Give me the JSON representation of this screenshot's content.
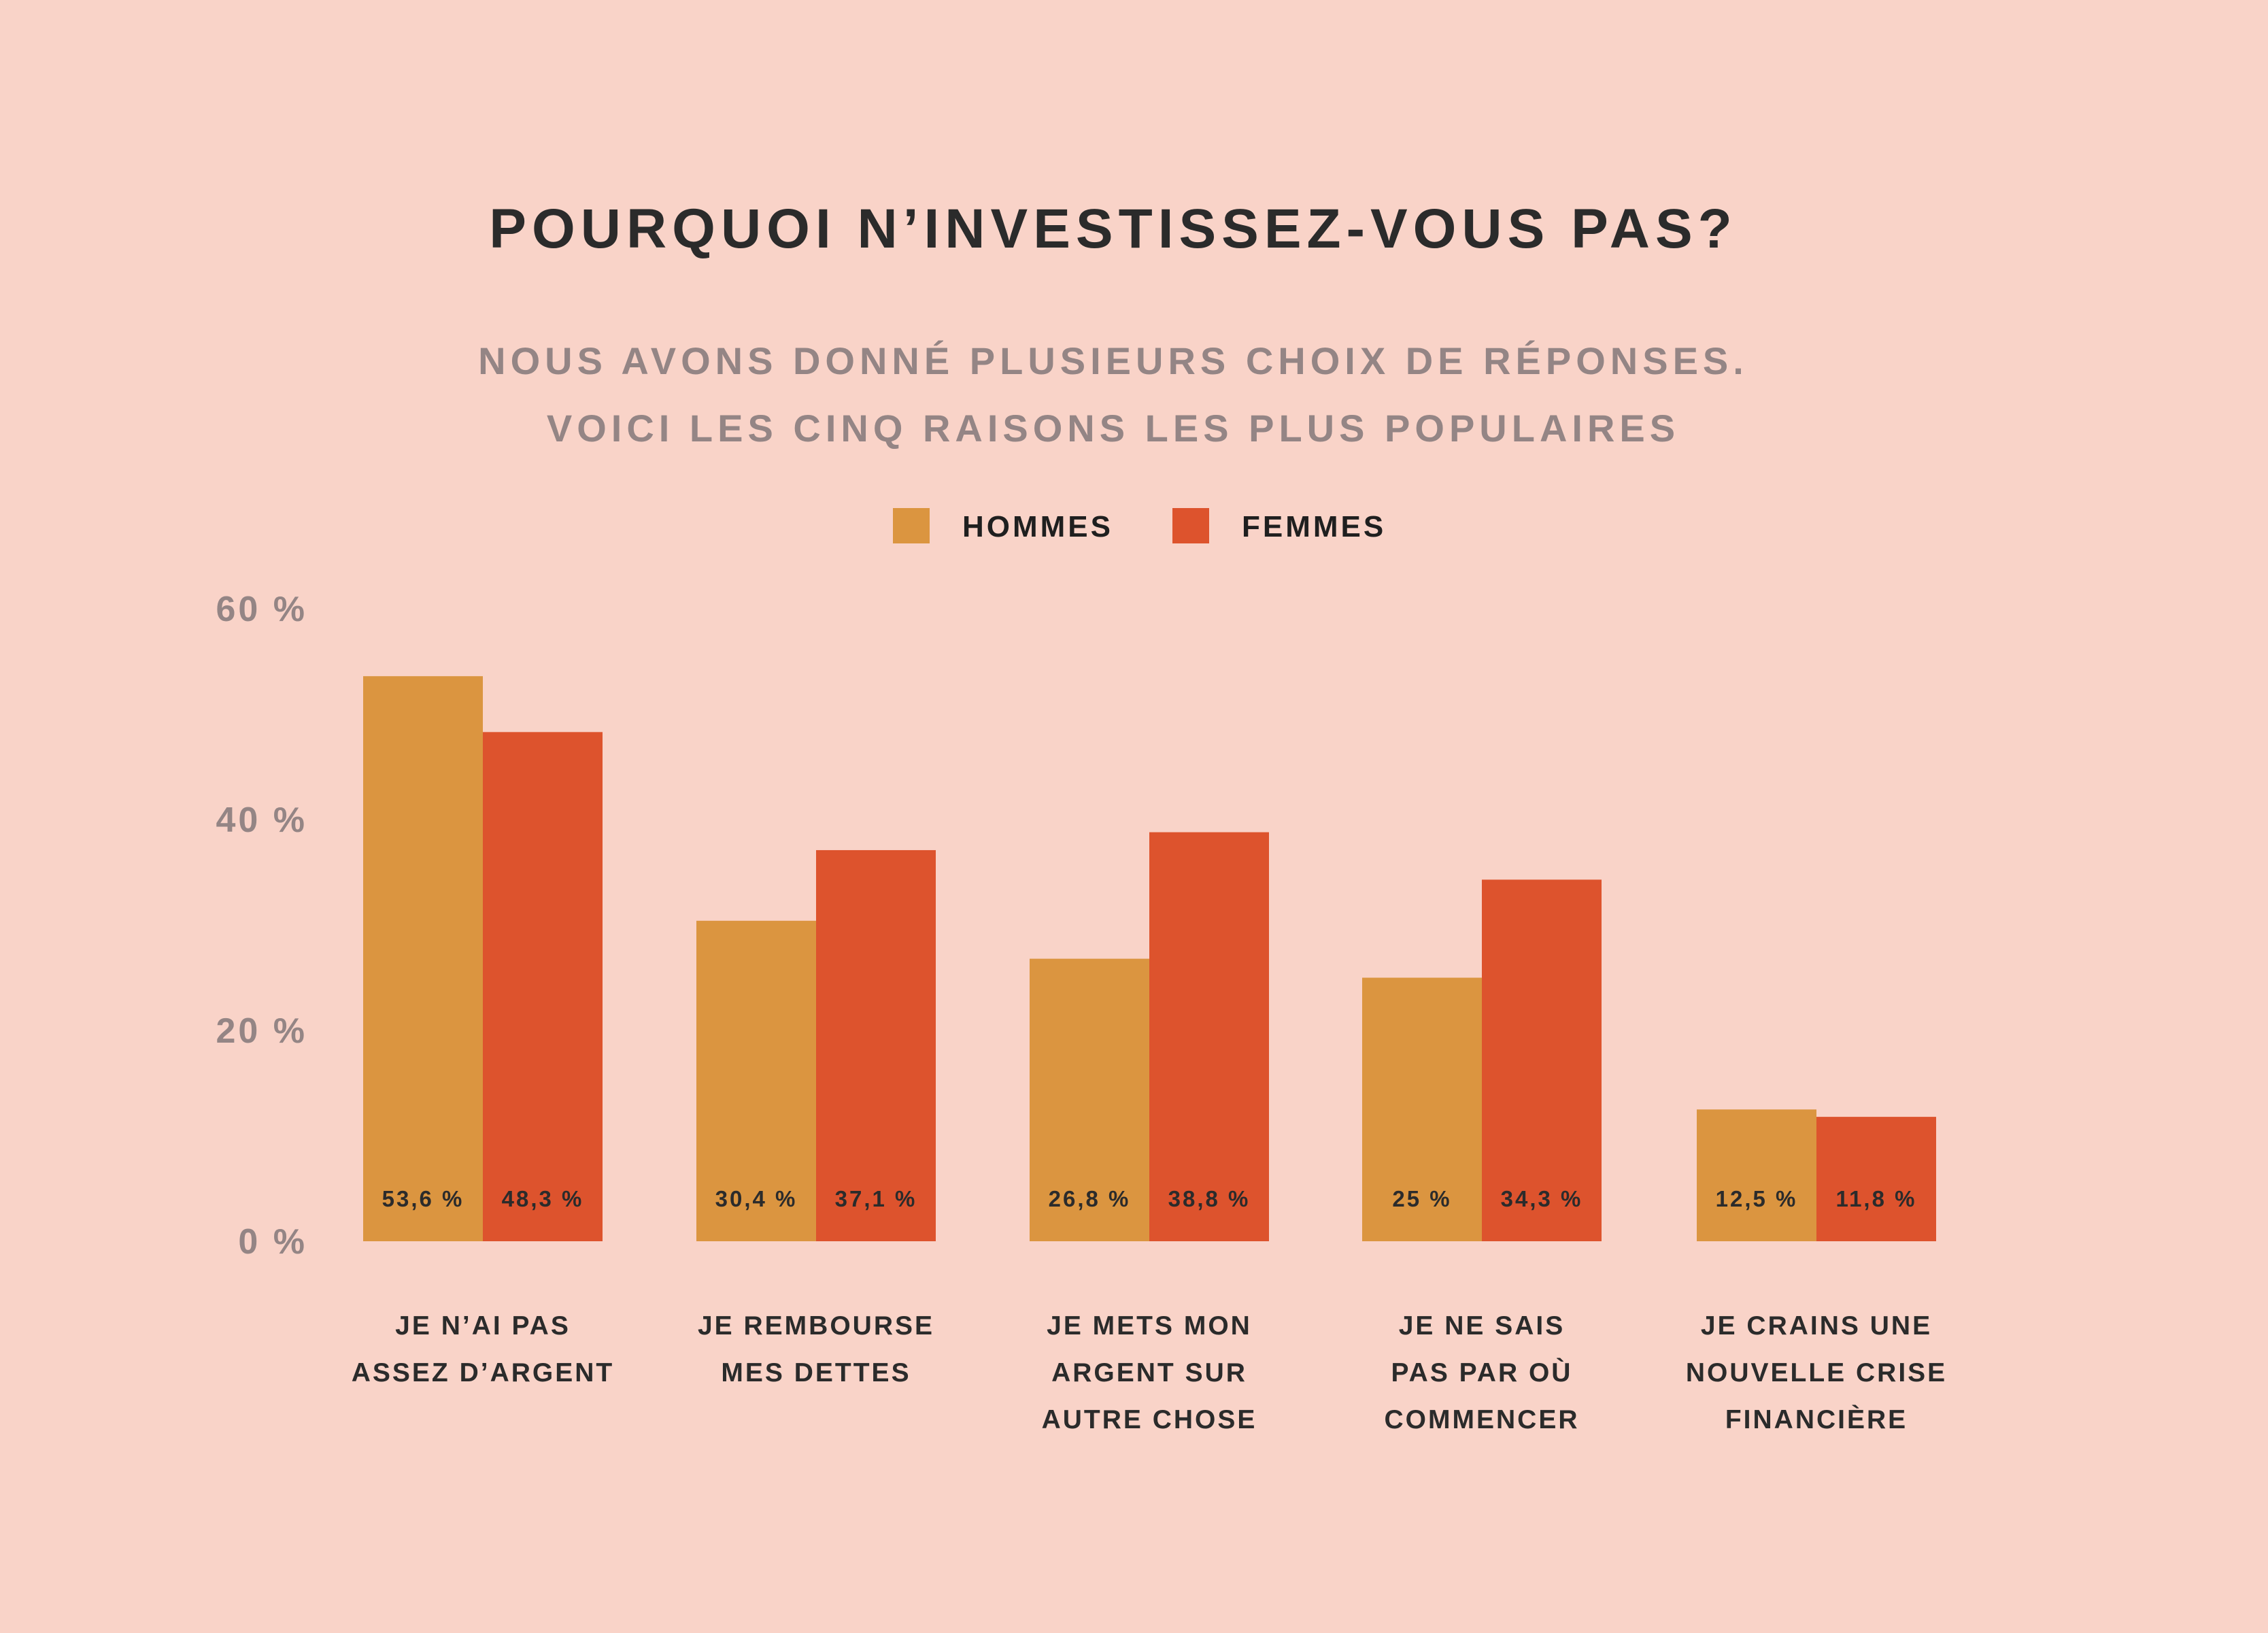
{
  "title": "POURQUOI N’INVESTISSEZ-VOUS PAS?",
  "subtitle_line1": "NOUS AVONS DONNÉ PLUSIEURS CHOIX DE RÉPONSES.",
  "subtitle_line2": "VOICI LES CINQ RAISONS LES PLUS POPULAIRES",
  "colors": {
    "background": "#f9d3c8",
    "hommes": "#db9540",
    "femmes": "#dd532d"
  },
  "chart_data": {
    "type": "bar",
    "title": "POURQUOI N’INVESTISSEZ-VOUS PAS?",
    "categories": [
      [
        "JE N’AI PAS",
        "ASSEZ D’ARGENT"
      ],
      [
        "JE REMBOURSE",
        "MES DETTES"
      ],
      [
        "JE METS MON",
        "ARGENT SUR",
        "AUTRE CHOSE"
      ],
      [
        "JE NE SAIS",
        "PAS PAR OÙ",
        "COMMENCER"
      ],
      [
        "JE CRAINS UNE",
        "NOUVELLE CRISE",
        "FINANCIÈRE"
      ]
    ],
    "series": [
      {
        "name": "HOMMES",
        "color": "#db9540",
        "values": [
          53.6,
          30.4,
          26.8,
          25,
          12.5
        ],
        "labels": [
          "53,6 %",
          "30,4 %",
          "26,8 %",
          "25 %",
          "12,5 %"
        ]
      },
      {
        "name": "FEMMES",
        "color": "#dd532d",
        "values": [
          48.3,
          37.1,
          38.8,
          34.3,
          11.8
        ],
        "labels": [
          "48,3 %",
          "37,1 %",
          "38,8 %",
          "34,3 %",
          "11,8 %"
        ]
      }
    ],
    "yticks": [
      "0 %",
      "20 %",
      "40 %",
      "60 %"
    ],
    "ytick_values": [
      0,
      20,
      40,
      60
    ],
    "ylim": [
      0,
      60
    ],
    "grid": false,
    "legend_position": "top-center"
  }
}
